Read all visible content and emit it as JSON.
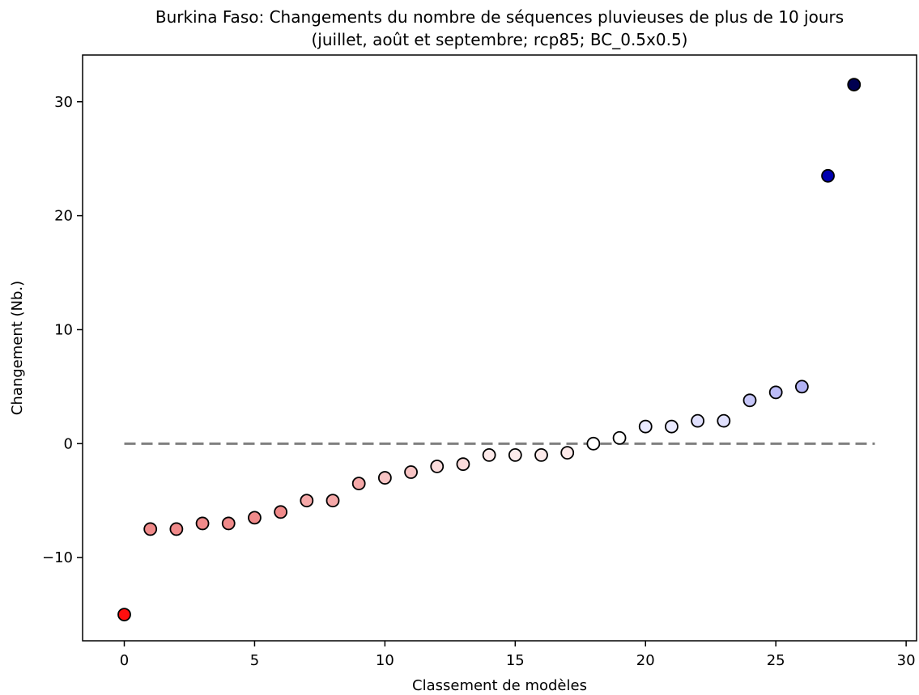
{
  "chart_data": {
    "type": "scatter",
    "title_line1": "Burkina Faso: Changements du nombre de séquences pluvieuses de plus de 10 jours",
    "title_line2": "(juillet, août et septembre; rcp85; BC_0.5x0.5)",
    "xlabel": "Classement de modèles",
    "ylabel": "Changement (Nb.)",
    "xlim": [
      -1.6,
      30.4
    ],
    "ylim": [
      -17.3,
      34.1
    ],
    "xticks": [
      0,
      5,
      10,
      15,
      20,
      25,
      30
    ],
    "xtick_labels": [
      "0",
      "5",
      "10",
      "15",
      "20",
      "25",
      "30"
    ],
    "yticks": [
      -10,
      0,
      10,
      20,
      30
    ],
    "ytick_labels": [
      "−10",
      "0",
      "10",
      "20",
      "30"
    ],
    "reference_line": {
      "y": 0,
      "x_start": 0,
      "x_end": 28.8,
      "color": "#808080",
      "style": "dashed"
    },
    "points": [
      {
        "x": 0,
        "y": -15.0,
        "color": "#ff0e0e"
      },
      {
        "x": 1,
        "y": -7.5,
        "color": "#f08a8a"
      },
      {
        "x": 2,
        "y": -7.5,
        "color": "#f08a8a"
      },
      {
        "x": 3,
        "y": -7.0,
        "color": "#f08a8a"
      },
      {
        "x": 4,
        "y": -7.0,
        "color": "#f08a8a"
      },
      {
        "x": 5,
        "y": -6.5,
        "color": "#f08a8a"
      },
      {
        "x": 6,
        "y": -6.0,
        "color": "#f08a8a"
      },
      {
        "x": 7,
        "y": -5.0,
        "color": "#f5a8a8"
      },
      {
        "x": 8,
        "y": -5.0,
        "color": "#f5a8a8"
      },
      {
        "x": 9,
        "y": -3.5,
        "color": "#f5a8a8"
      },
      {
        "x": 10,
        "y": -3.0,
        "color": "#f8c4c4"
      },
      {
        "x": 11,
        "y": -2.5,
        "color": "#f8c4c4"
      },
      {
        "x": 12,
        "y": -2.0,
        "color": "#fbdcdc"
      },
      {
        "x": 13,
        "y": -1.8,
        "color": "#fbdcdc"
      },
      {
        "x": 14,
        "y": -1.0,
        "color": "#fdeaea"
      },
      {
        "x": 15,
        "y": -1.0,
        "color": "#fdeaea"
      },
      {
        "x": 16,
        "y": -1.0,
        "color": "#fdeaea"
      },
      {
        "x": 17,
        "y": -0.8,
        "color": "#fdeaea"
      },
      {
        "x": 18,
        "y": 0.0,
        "color": "#ffffff"
      },
      {
        "x": 19,
        "y": 0.5,
        "color": "#ffffff"
      },
      {
        "x": 20,
        "y": 1.5,
        "color": "#eaeaff"
      },
      {
        "x": 21,
        "y": 1.5,
        "color": "#eaeaff"
      },
      {
        "x": 22,
        "y": 2.0,
        "color": "#e0e0fd"
      },
      {
        "x": 23,
        "y": 2.0,
        "color": "#e0e0fd"
      },
      {
        "x": 24,
        "y": 3.8,
        "color": "#c6c6f8"
      },
      {
        "x": 25,
        "y": 4.5,
        "color": "#bcbcf6"
      },
      {
        "x": 26,
        "y": 5.0,
        "color": "#b2b2f4"
      },
      {
        "x": 27,
        "y": 23.5,
        "color": "#0000b0"
      },
      {
        "x": 28,
        "y": 31.5,
        "color": "#000050"
      }
    ]
  }
}
